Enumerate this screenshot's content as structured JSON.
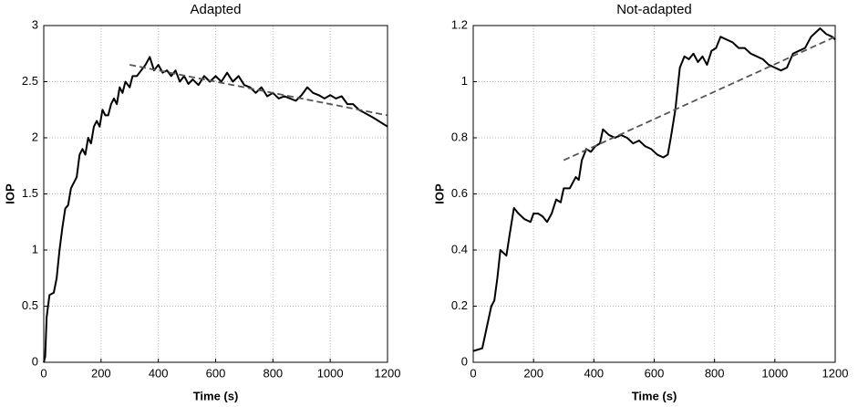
{
  "chart_data": [
    {
      "type": "line",
      "title": "Adapted",
      "xlabel": "Time (s)",
      "ylabel": "IOP",
      "xlim": [
        0,
        1200
      ],
      "xticks": [
        0,
        200,
        400,
        600,
        800,
        1000,
        1200
      ],
      "ylim": [
        0,
        3
      ],
      "yticks": [
        0,
        0.5,
        1,
        1.5,
        2,
        2.5,
        3
      ],
      "grid": true,
      "series": [
        {
          "color": "#000000",
          "dash": false,
          "x": [
            0,
            5,
            10,
            20,
            35,
            45,
            55,
            65,
            75,
            85,
            95,
            105,
            115,
            125,
            135,
            145,
            155,
            165,
            175,
            185,
            195,
            205,
            215,
            225,
            235,
            245,
            255,
            265,
            275,
            285,
            300,
            310,
            325,
            340,
            355,
            370,
            385,
            400,
            415,
            430,
            445,
            460,
            475,
            490,
            505,
            520,
            540,
            560,
            580,
            600,
            620,
            640,
            660,
            680,
            700,
            720,
            740,
            760,
            780,
            800,
            820,
            840,
            860,
            880,
            900,
            920,
            940,
            960,
            980,
            1000,
            1020,
            1040,
            1060,
            1080,
            1100,
            1150,
            1200
          ],
          "values": [
            0,
            0.05,
            0.4,
            0.6,
            0.62,
            0.75,
            1.0,
            1.2,
            1.37,
            1.4,
            1.55,
            1.6,
            1.65,
            1.85,
            1.9,
            1.85,
            2.0,
            1.95,
            2.1,
            2.15,
            2.1,
            2.25,
            2.2,
            2.2,
            2.3,
            2.35,
            2.3,
            2.45,
            2.4,
            2.5,
            2.45,
            2.55,
            2.55,
            2.6,
            2.65,
            2.72,
            2.6,
            2.65,
            2.58,
            2.6,
            2.55,
            2.6,
            2.5,
            2.55,
            2.48,
            2.52,
            2.47,
            2.55,
            2.5,
            2.55,
            2.5,
            2.58,
            2.5,
            2.55,
            2.47,
            2.45,
            2.4,
            2.45,
            2.37,
            2.4,
            2.35,
            2.37,
            2.35,
            2.33,
            2.38,
            2.45,
            2.4,
            2.38,
            2.35,
            2.38,
            2.35,
            2.37,
            2.3,
            2.3,
            2.25,
            2.18,
            2.1
          ]
        },
        {
          "color": "#555555",
          "dash": true,
          "x": [
            300,
            1200
          ],
          "values": [
            2.65,
            2.2
          ]
        }
      ]
    },
    {
      "type": "line",
      "title": "Not-adapted",
      "xlabel": "Time (s)",
      "ylabel": "IOP",
      "xlim": [
        0,
        1200
      ],
      "xticks": [
        0,
        200,
        400,
        600,
        800,
        1000,
        1200
      ],
      "ylim": [
        0,
        1.2
      ],
      "yticks": [
        0,
        0.2,
        0.4,
        0.6,
        0.8,
        1,
        1.2
      ],
      "grid": true,
      "series": [
        {
          "color": "#000000",
          "dash": false,
          "x": [
            0,
            30,
            40,
            50,
            60,
            70,
            80,
            90,
            100,
            110,
            120,
            135,
            150,
            170,
            190,
            200,
            215,
            230,
            245,
            260,
            275,
            290,
            300,
            320,
            340,
            350,
            360,
            375,
            390,
            405,
            420,
            430,
            450,
            470,
            490,
            510,
            530,
            550,
            570,
            590,
            610,
            630,
            645,
            655,
            670,
            685,
            700,
            715,
            730,
            745,
            760,
            775,
            790,
            805,
            820,
            840,
            860,
            880,
            900,
            920,
            940,
            960,
            980,
            1000,
            1020,
            1040,
            1060,
            1080,
            1100,
            1120,
            1140,
            1150,
            1170,
            1190,
            1200
          ],
          "values": [
            0.04,
            0.05,
            0.1,
            0.15,
            0.2,
            0.22,
            0.3,
            0.4,
            0.39,
            0.38,
            0.45,
            0.55,
            0.53,
            0.51,
            0.5,
            0.53,
            0.53,
            0.52,
            0.5,
            0.53,
            0.58,
            0.57,
            0.62,
            0.62,
            0.66,
            0.65,
            0.72,
            0.76,
            0.75,
            0.77,
            0.78,
            0.83,
            0.81,
            0.8,
            0.81,
            0.8,
            0.78,
            0.79,
            0.77,
            0.76,
            0.74,
            0.73,
            0.74,
            0.8,
            0.9,
            1.05,
            1.09,
            1.08,
            1.1,
            1.07,
            1.09,
            1.06,
            1.11,
            1.12,
            1.16,
            1.15,
            1.14,
            1.12,
            1.12,
            1.1,
            1.09,
            1.08,
            1.06,
            1.05,
            1.04,
            1.05,
            1.1,
            1.11,
            1.12,
            1.16,
            1.18,
            1.19,
            1.17,
            1.16,
            1.15
          ]
        },
        {
          "color": "#555555",
          "dash": true,
          "x": [
            300,
            1200
          ],
          "values": [
            0.72,
            1.16
          ]
        }
      ]
    }
  ]
}
